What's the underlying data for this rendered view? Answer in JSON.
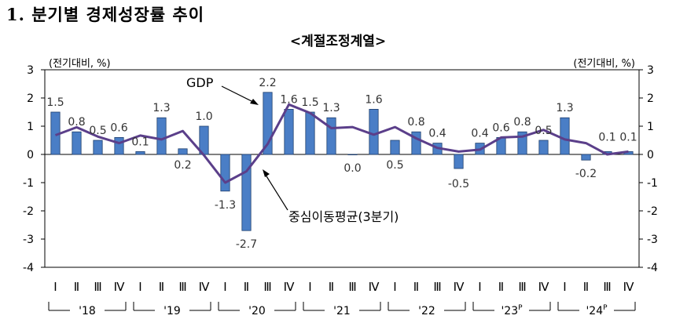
{
  "title": "1. 분기별 경제성장률 추이",
  "subtitle": "<계절조정계열>",
  "chart_data": {
    "type": "bar",
    "unit_left": "(전기대비, %)",
    "unit_right": "(전기대비, %)",
    "ylim": [
      -4,
      3
    ],
    "yticks": [
      "3",
      "2",
      "1",
      "0",
      "-1",
      "-2",
      "-3",
      "-4"
    ],
    "yticks_right": [
      "3",
      "2",
      "1",
      "0",
      "-1",
      "-2",
      "-3",
      "-4"
    ],
    "grid": false,
    "quarter_labels": [
      "Ⅰ",
      "Ⅱ",
      "Ⅲ",
      "Ⅳ",
      "Ⅰ",
      "Ⅱ",
      "Ⅲ",
      "Ⅳ",
      "Ⅰ",
      "Ⅱ",
      "Ⅲ",
      "Ⅳ",
      "Ⅰ",
      "Ⅱ",
      "Ⅲ",
      "Ⅳ",
      "Ⅰ",
      "Ⅱ",
      "Ⅲ",
      "Ⅳ",
      "Ⅰ",
      "Ⅱ",
      "Ⅲ",
      "Ⅳ",
      "Ⅰ",
      "Ⅱ",
      "Ⅲ",
      "Ⅳ"
    ],
    "years": [
      {
        "label": "'18",
        "sup": ""
      },
      {
        "label": "'19",
        "sup": ""
      },
      {
        "label": "'20",
        "sup": ""
      },
      {
        "label": "'21",
        "sup": ""
      },
      {
        "label": "'22",
        "sup": ""
      },
      {
        "label": "'23",
        "sup": "P"
      },
      {
        "label": "'24",
        "sup": "P"
      }
    ],
    "series": [
      {
        "name": "GDP",
        "kind": "bar",
        "color": "#4a7ec6",
        "values": [
          1.5,
          0.8,
          0.5,
          0.6,
          0.1,
          1.3,
          0.2,
          1.0,
          -1.3,
          -2.7,
          2.2,
          1.6,
          1.5,
          1.3,
          0.0,
          1.6,
          0.5,
          0.8,
          0.4,
          -0.5,
          0.4,
          0.6,
          0.8,
          0.5,
          1.3,
          -0.2,
          0.1,
          0.1
        ],
        "data_labels": [
          "1.5",
          "0.8",
          "0.5",
          "0.6",
          "0.1",
          "1.3",
          "0.2",
          "1.0",
          "-1.3",
          "-2.7",
          "2.2",
          "1.6",
          "1.5",
          "1.3",
          "0.0",
          "1.6",
          "0.5",
          "0.8",
          "0.4",
          "-0.5",
          "0.4",
          "0.6",
          "0.8",
          "0.5",
          "1.3",
          "-0.2",
          "0.1",
          "0.1"
        ]
      },
      {
        "name": "중심이동평균(3분기)",
        "kind": "line",
        "color": "#5b3f8a",
        "values": [
          0.68,
          0.96,
          0.63,
          0.4,
          0.67,
          0.53,
          0.83,
          -0.03,
          -1.0,
          -0.6,
          0.37,
          1.77,
          1.47,
          0.93,
          0.97,
          0.7,
          0.97,
          0.57,
          0.23,
          0.1,
          0.17,
          0.6,
          0.63,
          0.87,
          0.53,
          0.4,
          0.0,
          0.1
        ]
      }
    ],
    "annotations": [
      {
        "text": "GDP",
        "target": "GDP"
      },
      {
        "text": "중심이동평균(3분기)",
        "target": "중심이동평균(3분기)"
      }
    ]
  }
}
